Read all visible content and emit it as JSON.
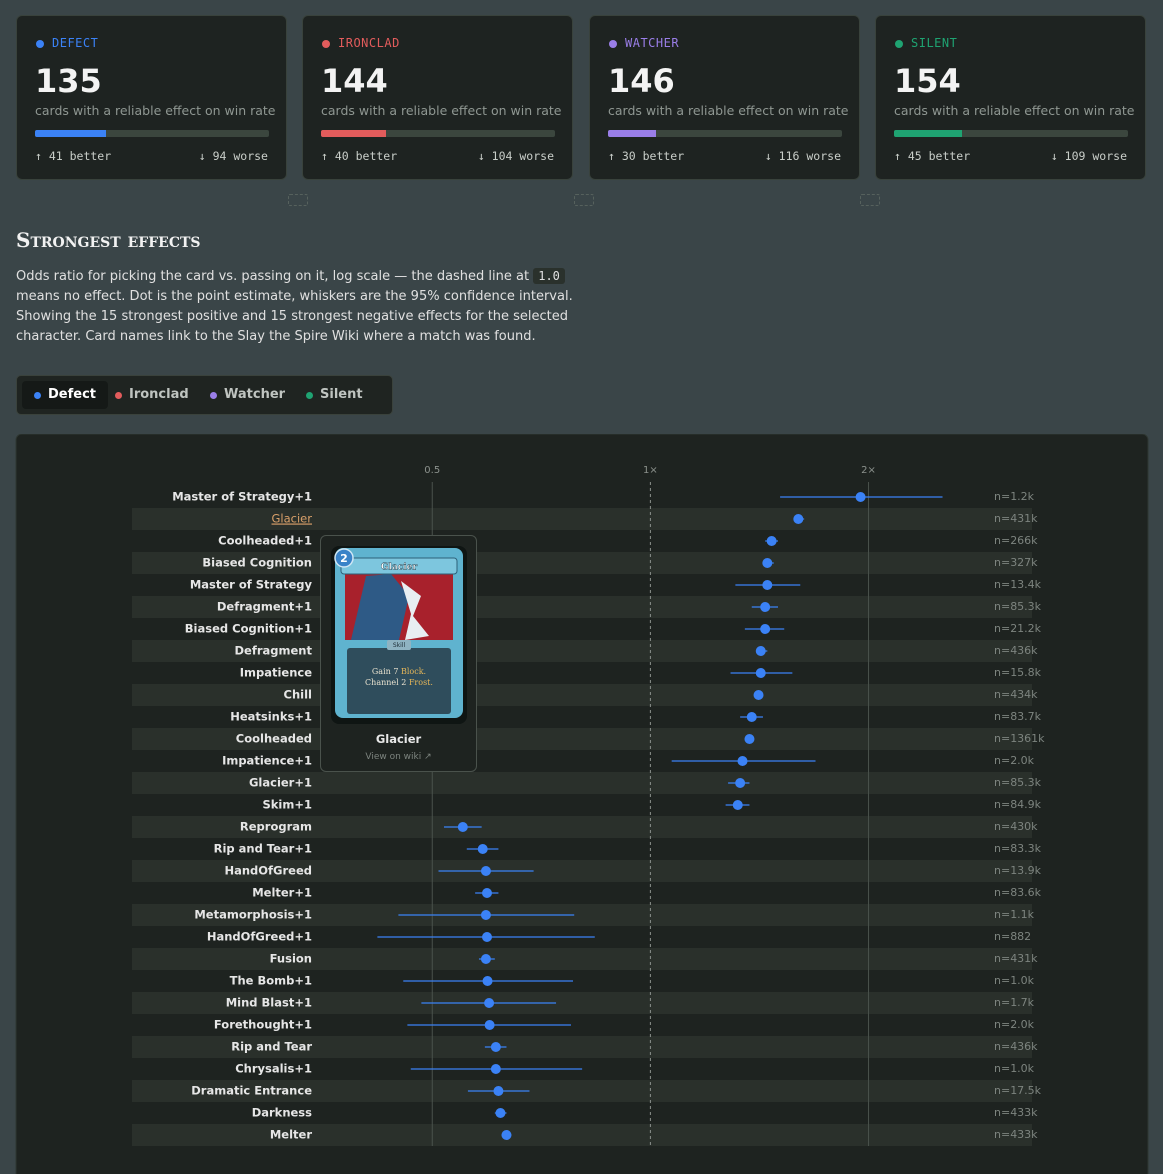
{
  "stat_cards": [
    {
      "name": "DEFECT",
      "color": "#3b82f6",
      "count": 135,
      "subtitle": "cards with a reliable effect on win rate",
      "better": {
        "value": 41,
        "label": "↑ 41 better"
      },
      "worse": {
        "value": 94,
        "label": "↓ 94 worse"
      }
    },
    {
      "name": "IRONCLAD",
      "color": "#e25c5c",
      "count": 144,
      "subtitle": "cards with a reliable effect on win rate",
      "better": {
        "value": 40,
        "label": "↑ 40 better"
      },
      "worse": {
        "value": 104,
        "label": "↓ 104 worse"
      }
    },
    {
      "name": "WATCHER",
      "color": "#9a7ee8",
      "count": 146,
      "subtitle": "cards with a reliable effect on win rate",
      "better": {
        "value": 30,
        "label": "↑ 30 better"
      },
      "worse": {
        "value": 116,
        "label": "↓ 116 worse"
      }
    },
    {
      "name": "SILENT",
      "color": "#1fa372",
      "count": 154,
      "subtitle": "cards with a reliable effect on win rate",
      "better": {
        "value": 45,
        "label": "↑ 45 better"
      },
      "worse": {
        "value": 109,
        "label": "↓ 109 worse"
      }
    }
  ],
  "section": {
    "title": "Strongest effects",
    "description": {
      "before": "Odds ratio for picking the card vs. passing on it, log scale — the dashed line at ",
      "code": "1.0",
      "after": " means no effect. Dot is the point estimate, whiskers are the 95% confidence interval. Showing the 15 strongest positive and 15 strongest negative effects for the selected character. Card names link to the Slay the Spire Wiki where a match was found."
    }
  },
  "tabs": [
    {
      "label": "Defect",
      "color": "#3b82f6",
      "active": true
    },
    {
      "label": "Ironclad",
      "color": "#e25c5c",
      "active": false
    },
    {
      "label": "Watcher",
      "color": "#9a7ee8",
      "active": false
    },
    {
      "label": "Silent",
      "color": "#1fa372",
      "active": false
    }
  ],
  "tooltip": {
    "cost": "2",
    "card_title": "Glacier",
    "card_type": "Skill",
    "description": [
      [
        "Gain 7 ",
        "Block."
      ],
      [
        "Channel 2 ",
        "Frost."
      ]
    ],
    "name": "Glacier",
    "link": "View on wiki ↗"
  },
  "chart_data": {
    "type": "forest",
    "x_scale": "log",
    "xlim": [
      0.35,
      2.85
    ],
    "xticks": [
      0.5,
      {
        "value": 1,
        "label": "1×"
      },
      {
        "value": 2,
        "label": "2×"
      }
    ],
    "reference_line": 1,
    "color": "#3b82f6",
    "hovered_row": 1,
    "categories": [
      "Master of Strategy+1",
      "Glacier",
      "Coolheaded+1",
      "Biased Cognition",
      "Master of Strategy",
      "Defragment+1",
      "Biased Cognition+1",
      "Defragment",
      "Impatience",
      "Chill",
      "Heatsinks+1",
      "Coolheaded",
      "Impatience+1",
      "Glacier+1",
      "Skim+1",
      "Reprogram",
      "Rip and Tear+1",
      "HandOfGreed",
      "Melter+1",
      "Metamorphosis+1",
      "HandOfGreed+1",
      "Fusion",
      "The Bomb+1",
      "Mind Blast+1",
      "Forethought+1",
      "Rip and Tear",
      "Chrysalis+1",
      "Dramatic Entrance",
      "Darkness",
      "Melter"
    ],
    "values": [
      1.95,
      1.6,
      1.47,
      1.45,
      1.45,
      1.44,
      1.44,
      1.42,
      1.42,
      1.41,
      1.38,
      1.37,
      1.34,
      1.33,
      1.32,
      0.551,
      0.587,
      0.593,
      0.595,
      0.593,
      0.595,
      0.593,
      0.596,
      0.599,
      0.6,
      0.612,
      0.612,
      0.617,
      0.621,
      0.633
    ],
    "lower": [
      1.51,
      1.58,
      1.44,
      1.43,
      1.31,
      1.38,
      1.35,
      1.4,
      1.29,
      1.39,
      1.33,
      1.36,
      1.07,
      1.28,
      1.27,
      0.519,
      0.558,
      0.51,
      0.573,
      0.449,
      0.42,
      0.58,
      0.456,
      0.483,
      0.462,
      0.591,
      0.467,
      0.56,
      0.61,
      0.623
    ],
    "upper": [
      2.53,
      1.63,
      1.5,
      1.48,
      1.61,
      1.5,
      1.53,
      1.45,
      1.57,
      1.43,
      1.43,
      1.38,
      1.69,
      1.37,
      1.37,
      0.585,
      0.617,
      0.69,
      0.617,
      0.785,
      0.838,
      0.61,
      0.782,
      0.741,
      0.777,
      0.633,
      0.805,
      0.681,
      0.633,
      0.643
    ],
    "n_labels": [
      "n=1.2k",
      "n=431k",
      "n=266k",
      "n=327k",
      "n=13.4k",
      "n=85.3k",
      "n=21.2k",
      "n=436k",
      "n=15.8k",
      "n=434k",
      "n=83.7k",
      "n=1361k",
      "n=2.0k",
      "n=85.3k",
      "n=84.9k",
      "n=430k",
      "n=83.3k",
      "n=13.9k",
      "n=83.6k",
      "n=1.1k",
      "n=882",
      "n=431k",
      "n=1.0k",
      "n=1.7k",
      "n=2.0k",
      "n=436k",
      "n=1.0k",
      "n=17.5k",
      "n=433k",
      "n=433k"
    ]
  }
}
